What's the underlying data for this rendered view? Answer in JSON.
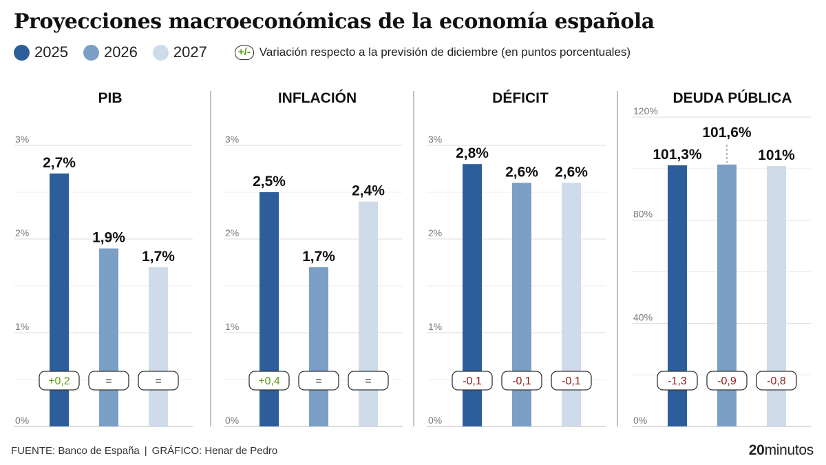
{
  "title": "Proyecciones macroeconómicas de la economía española",
  "legend": {
    "years": [
      {
        "label": "2025",
        "color": "#2d5d9a"
      },
      {
        "label": "2026",
        "color": "#7b9fc5"
      },
      {
        "label": "2027",
        "color": "#cfdbe8"
      }
    ],
    "variation_pill": "+/-",
    "variation_text": "Variación respecto a la previsión de diciembre (en puntos porcentuales)"
  },
  "colors": {
    "positive": "#5a9a10",
    "negative": "#8b1a1a",
    "neutral": "#333333",
    "grid": "#dddddd",
    "divider": "#999999"
  },
  "chart_data": [
    {
      "type": "bar",
      "title": "PIB",
      "categories": [
        "2025",
        "2026",
        "2027"
      ],
      "values": [
        2.7,
        1.9,
        1.7
      ],
      "value_labels": [
        "2,7%",
        "1,9%",
        "1,7%"
      ],
      "changes": [
        "+0,2",
        "=",
        "="
      ],
      "ylim": [
        0,
        3
      ],
      "yticks": [
        0,
        1,
        2,
        3
      ],
      "ytick_labels": [
        "0%",
        "1%",
        "2%",
        "3%"
      ]
    },
    {
      "type": "bar",
      "title": "INFLACIÓN",
      "categories": [
        "2025",
        "2026",
        "2027"
      ],
      "values": [
        2.5,
        1.7,
        2.4
      ],
      "value_labels": [
        "2,5%",
        "1,7%",
        "2,4%"
      ],
      "changes": [
        "+0,4",
        "=",
        "="
      ],
      "ylim": [
        0,
        3
      ],
      "yticks": [
        0,
        1,
        2,
        3
      ],
      "ytick_labels": [
        "0%",
        "1%",
        "2%",
        "3%"
      ]
    },
    {
      "type": "bar",
      "title": "DÉFICIT",
      "categories": [
        "2025",
        "2026",
        "2027"
      ],
      "values": [
        2.8,
        2.6,
        2.6
      ],
      "value_labels": [
        "2,8%",
        "2,6%",
        "2,6%"
      ],
      "changes": [
        "-0,1",
        "-0,1",
        "-0,1"
      ],
      "ylim": [
        0,
        3
      ],
      "yticks": [
        0,
        1,
        2,
        3
      ],
      "ytick_labels": [
        "0%",
        "1%",
        "2%",
        "3%"
      ]
    },
    {
      "type": "bar",
      "title": "DEUDA PÚBLICA",
      "categories": [
        "2025",
        "2026",
        "2027"
      ],
      "values": [
        101.3,
        101.6,
        101.0
      ],
      "value_labels": [
        "101,3%",
        "101,6%",
        "101%"
      ],
      "changes": [
        "-1,3",
        "-0,9",
        "-0,8"
      ],
      "ylim": [
        0,
        120
      ],
      "yticks": [
        0,
        40,
        80,
        120
      ],
      "ytick_labels": [
        "0%",
        "40%",
        "80%",
        "120%"
      ]
    }
  ],
  "footer": {
    "source": "FUENTE: Banco de España",
    "separator": "|",
    "credit": "GRÁFICO: Henar de Pedro"
  },
  "brand": {
    "number": "20",
    "word": "minutos"
  }
}
